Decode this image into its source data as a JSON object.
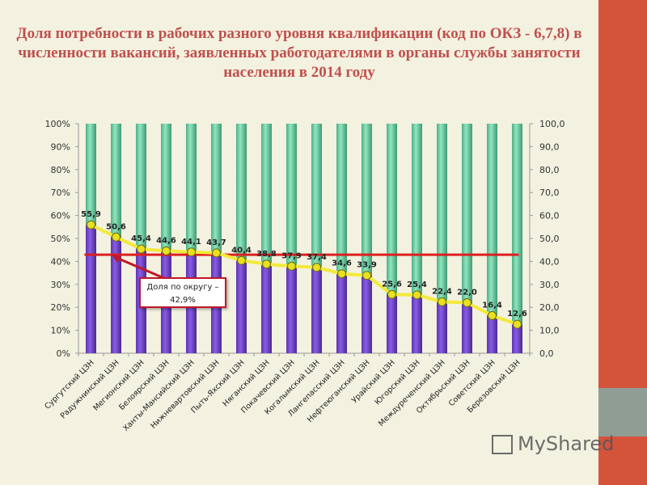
{
  "title": "Доля потребности в рабочих разного уровня квалификации (код по ОКЗ - 6,7,8) в численности вакансий, заявленных работодателями в органы службы занятости населения в 2014 году",
  "callout": {
    "line1": "Доля по округу –",
    "line2": "42,9%"
  },
  "watermark": "MyShared",
  "chart_data": {
    "type": "bar",
    "stacked_percent": true,
    "categories": [
      "Сургутский ЦЗН",
      "Радужнинский ЦЗН",
      "Мегионский ЦЗН",
      "Белоярский ЦЗН",
      "Ханты-Мансийский ЦЗН",
      "Нижневартовский ЦЗН",
      "Пыть-Яхский ЦЗН",
      "Няганский ЦЗН",
      "Покачевский ЦЗН",
      "Когалымский ЦЗН",
      "Лангепасский ЦЗН",
      "Нефтеюганский ЦЗН",
      "Урайский ЦЗН",
      "Югорский ЦЗН",
      "Междуреченский ЦЗН",
      "Октябрьский ЦЗН",
      "Советский ЦЗН",
      "Березовский ЦЗН"
    ],
    "values": [
      55.9,
      50.6,
      45.4,
      44.6,
      44.1,
      43.7,
      40.4,
      38.8,
      37.9,
      37.4,
      34.6,
      33.9,
      25.6,
      25.4,
      22.4,
      22.0,
      16.4,
      12.6
    ],
    "value_labels": [
      "55,9",
      "50,6",
      "45,4",
      "44,6",
      "44,1",
      "43,7",
      "40,4",
      "38,8",
      "37,9",
      "37,4",
      "34,6",
      "33,9",
      "25,6",
      "25,4",
      "22,4",
      "22,0",
      "16,4",
      "12,6"
    ],
    "reference_line": 42.9,
    "left_axis": {
      "ylim": [
        0,
        100
      ],
      "ticks": [
        "0%",
        "10%",
        "20%",
        "30%",
        "40%",
        "50%",
        "60%",
        "70%",
        "80%",
        "90%",
        "100%"
      ]
    },
    "right_axis": {
      "ylim": [
        0,
        100
      ],
      "ticks": [
        "0,0",
        "10,0",
        "20,0",
        "30,0",
        "40,0",
        "50,0",
        "60,0",
        "70,0",
        "80,0",
        "90,0",
        "100,0"
      ]
    },
    "colors": {
      "bar_value": "#8a5ce6",
      "bar_rest": "#8fe6bf",
      "line": "#f2ea3a",
      "marker": "#e8e020",
      "reference": "#dd1f1f",
      "title": "#c0504d"
    },
    "grid": false
  }
}
